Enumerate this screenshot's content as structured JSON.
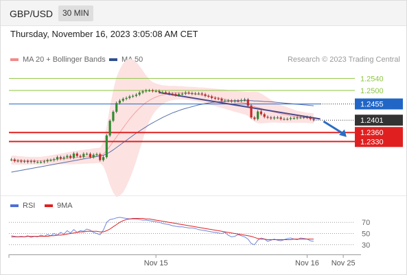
{
  "header": {
    "symbol": "GBP/USD",
    "timeframe": "30 MIN"
  },
  "datetime": "Thursday, November 16, 2023 3:05:08 AM CET",
  "legend": {
    "items": [
      {
        "label": "MA 20 + Bollinger Bands",
        "color": "#f28a8a"
      },
      {
        "label": "MA 50",
        "color": "#2f4f8f"
      }
    ],
    "credit": "Research © 2023 Trading Central"
  },
  "rsi_legend": [
    {
      "label": "RSI",
      "color": "#4f6fd6"
    },
    {
      "label": "9MA",
      "color": "#e02020"
    }
  ],
  "chart_data": {
    "type": "candlestick",
    "symbol": "GBP/USD",
    "timeframe": "30 MIN",
    "ylim": [
      1.2155,
      1.2575
    ],
    "price_levels": [
      {
        "label": "1.2540",
        "value": 1.254,
        "kind": "resistance",
        "color": "#8cc63f"
      },
      {
        "label": "1.2500",
        "value": 1.25,
        "kind": "resistance",
        "color": "#8cc63f"
      },
      {
        "label": "1.2455",
        "value": 1.2455,
        "kind": "pivot",
        "color": "#2166c6"
      },
      {
        "label": "1.2401",
        "value": 1.2401,
        "kind": "last",
        "color": "#333333"
      },
      {
        "label": "1.2360",
        "value": 1.236,
        "kind": "support",
        "color": "#e02020"
      },
      {
        "label": "1.2330",
        "value": 1.233,
        "kind": "support",
        "color": "#e02020"
      }
    ],
    "close": [
      1.227,
      1.2265,
      1.2266,
      1.2263,
      1.2265,
      1.2262,
      1.2265,
      1.2262,
      1.2262,
      1.2262,
      1.2264,
      1.2268,
      1.2268,
      1.2271,
      1.2278,
      1.2273,
      1.2277,
      1.2282,
      1.2276,
      1.229,
      1.2282,
      1.2279,
      1.2289,
      1.2289,
      1.2278,
      1.2286,
      1.2288,
      1.2268,
      1.2278,
      1.235,
      1.2399,
      1.2429,
      1.2458,
      1.2466,
      1.2472,
      1.2475,
      1.248,
      1.2482,
      1.2486,
      1.2493,
      1.2497,
      1.25,
      1.25,
      1.2498,
      1.2498,
      1.2494,
      1.2494,
      1.2492,
      1.2489,
      1.2488,
      1.2484,
      1.2488,
      1.2489,
      1.2493,
      1.2491,
      1.2489,
      1.249,
      1.249,
      1.2487,
      1.2482,
      1.248,
      1.2475,
      1.2473,
      1.2472,
      1.2466,
      1.2466,
      1.2466,
      1.2463,
      1.2466,
      1.2465,
      1.2468,
      1.247,
      1.2449,
      1.241,
      1.2405,
      1.243,
      1.2421,
      1.2412,
      1.241,
      1.2407,
      1.241,
      1.241,
      1.2405,
      1.2405,
      1.2405,
      1.2408,
      1.2408,
      1.241,
      1.241,
      1.2411,
      1.241,
      1.2405,
      1.2401
    ],
    "ma20": [
      1.2268,
      1.2268,
      1.2267,
      1.2267,
      1.2266,
      1.2266,
      1.2266,
      1.2266,
      1.2266,
      1.2266,
      1.2267,
      1.2268,
      1.2269,
      1.227,
      1.2271,
      1.2272,
      1.2273,
      1.2274,
      1.2275,
      1.2276,
      1.2277,
      1.2278,
      1.2279,
      1.228,
      1.2281,
      1.2282,
      1.2283,
      1.2284,
      1.2288,
      1.23,
      1.2315,
      1.233,
      1.2345,
      1.236,
      1.2375,
      1.239,
      1.2405,
      1.2418,
      1.243,
      1.2441,
      1.2451,
      1.246,
      1.2467,
      1.2473,
      1.2478,
      1.2482,
      1.2485,
      1.2488,
      1.249,
      1.2491,
      1.2492,
      1.2492,
      1.2492,
      1.2491,
      1.249,
      1.2489,
      1.2488,
      1.2486,
      1.2485,
      1.2483,
      1.2481,
      1.2479,
      1.2477,
      1.2475,
      1.2473,
      1.2471,
      1.2468,
      1.2466,
      1.2464,
      1.2462,
      1.246,
      1.2458,
      1.2455,
      1.245,
      1.2446,
      1.2443,
      1.244,
      1.2437,
      1.2434,
      1.2431,
      1.2428,
      1.2425,
      1.2422,
      1.242,
      1.2418,
      1.2416,
      1.2414,
      1.2412,
      1.2411,
      1.241,
      1.2409,
      1.2408,
      1.2407
    ],
    "ma50": [
      1.2228,
      1.223,
      1.2232,
      1.2234,
      1.2236,
      1.2238,
      1.224,
      1.2242,
      1.2244,
      1.2246,
      1.2248,
      1.225,
      1.2252,
      1.2254,
      1.2256,
      1.2258,
      1.226,
      1.2262,
      1.2264,
      1.2266,
      1.2268,
      1.227,
      1.2272,
      1.2274,
      1.2276,
      1.2278,
      1.228,
      1.2282,
      1.2284,
      1.2289,
      1.2295,
      1.2302,
      1.231,
      1.2318,
      1.2326,
      1.2334,
      1.2342,
      1.235,
      1.2358,
      1.2365,
      1.2372,
      1.2379,
      1.2386,
      1.2392,
      1.2398,
      1.2404,
      1.241,
      1.2415,
      1.242,
      1.2425,
      1.2429,
      1.2433,
      1.2437,
      1.244,
      1.2443,
      1.2446,
      1.2449,
      1.2452,
      1.2454,
      1.2456,
      1.2458,
      1.246,
      1.2461,
      1.2462,
      1.2463,
      1.2464,
      1.2465,
      1.2465,
      1.2466,
      1.2466,
      1.2466,
      1.2466,
      1.2466,
      1.2466,
      1.2465,
      1.2465,
      1.2464,
      1.2463,
      1.2463,
      1.2462,
      1.2461,
      1.246,
      1.2459,
      1.2458,
      1.2457,
      1.2456,
      1.2455,
      1.2454,
      1.2453,
      1.2452,
      1.2451,
      1.245,
      1.2449
    ],
    "bb_width": [
      0.0015,
      0.0015,
      0.0014,
      0.0014,
      0.0014,
      0.0013,
      0.0013,
      0.0013,
      0.0013,
      0.0013,
      0.0014,
      0.0014,
      0.0015,
      0.0016,
      0.0017,
      0.0018,
      0.0019,
      0.002,
      0.0021,
      0.0022,
      0.0022,
      0.0023,
      0.0023,
      0.0024,
      0.0024,
      0.0025,
      0.0025,
      0.0026,
      0.004,
      0.008,
      0.013,
      0.017,
      0.02,
      0.021,
      0.0215,
      0.021,
      0.02,
      0.0185,
      0.0165,
      0.014,
      0.0115,
      0.009,
      0.007,
      0.0055,
      0.0045,
      0.0038,
      0.0032,
      0.0028,
      0.0025,
      0.0024,
      0.0023,
      0.0022,
      0.0022,
      0.0022,
      0.0022,
      0.0023,
      0.0023,
      0.0024,
      0.0025,
      0.0026,
      0.0027,
      0.0028,
      0.0029,
      0.003,
      0.0031,
      0.0032,
      0.0033,
      0.0034,
      0.0035,
      0.0036,
      0.0037,
      0.0038,
      0.004,
      0.0046,
      0.005,
      0.0052,
      0.005,
      0.0046,
      0.0042,
      0.0038,
      0.0035,
      0.0032,
      0.003,
      0.0028,
      0.0026,
      0.0024,
      0.0022,
      0.002,
      0.0019,
      0.0018,
      0.0017,
      0.0017,
      0.0017
    ],
    "trendline": {
      "from": [
        45,
        1.2493
      ],
      "to": [
        94,
        1.2405
      ]
    },
    "forecast_arrow": {
      "from": [
        95,
        1.2397
      ],
      "to": [
        102,
        1.2345
      ]
    },
    "x_ticks": [
      {
        "label": "Nov 15",
        "x": 44
      },
      {
        "label": "Nov 16",
        "x": 90
      },
      {
        "label": "Nov 25",
        "x": 101
      }
    ],
    "x_max": 104,
    "rsi": {
      "ylim": [
        15,
        85
      ],
      "levels": [
        70,
        50,
        30
      ],
      "values": [
        46,
        45,
        44,
        45,
        44,
        46,
        43,
        45,
        44,
        47,
        45,
        48,
        46,
        50,
        47,
        52,
        49,
        55,
        51,
        57,
        52,
        55,
        54,
        58,
        56,
        52,
        50,
        48,
        56,
        70,
        75,
        76,
        78,
        79,
        78,
        77,
        76,
        76,
        76,
        75,
        74,
        74,
        73,
        72,
        71,
        70,
        68,
        67,
        66,
        64,
        63,
        62,
        62,
        61,
        60,
        60,
        59,
        57,
        56,
        55,
        54,
        53,
        52,
        51,
        50,
        52,
        47,
        44,
        45,
        48,
        46,
        44,
        40,
        32,
        30,
        38,
        42,
        40,
        36,
        38,
        40,
        38,
        37,
        39,
        41,
        42,
        40,
        39,
        42,
        41,
        40,
        37,
        36
      ],
      "ma9": [
        44,
        44,
        44,
        44,
        44,
        45,
        45,
        45,
        45,
        45,
        45,
        45,
        46,
        46,
        47,
        47,
        48,
        49,
        50,
        51,
        52,
        53,
        53,
        54,
        54,
        54,
        54,
        53,
        53,
        55,
        58,
        62,
        66,
        70,
        73,
        75,
        76,
        77,
        77,
        77,
        77,
        76,
        76,
        75,
        74,
        73,
        72,
        71,
        70,
        69,
        68,
        67,
        66,
        65,
        64,
        63,
        62,
        61,
        60,
        59,
        58,
        57,
        56,
        55,
        54,
        53,
        52,
        51,
        50,
        49,
        48,
        47,
        46,
        45,
        43,
        41,
        40,
        40,
        39,
        39,
        39,
        39,
        39,
        39,
        39,
        39,
        40,
        40,
        40,
        40,
        40,
        40,
        40
      ]
    }
  }
}
